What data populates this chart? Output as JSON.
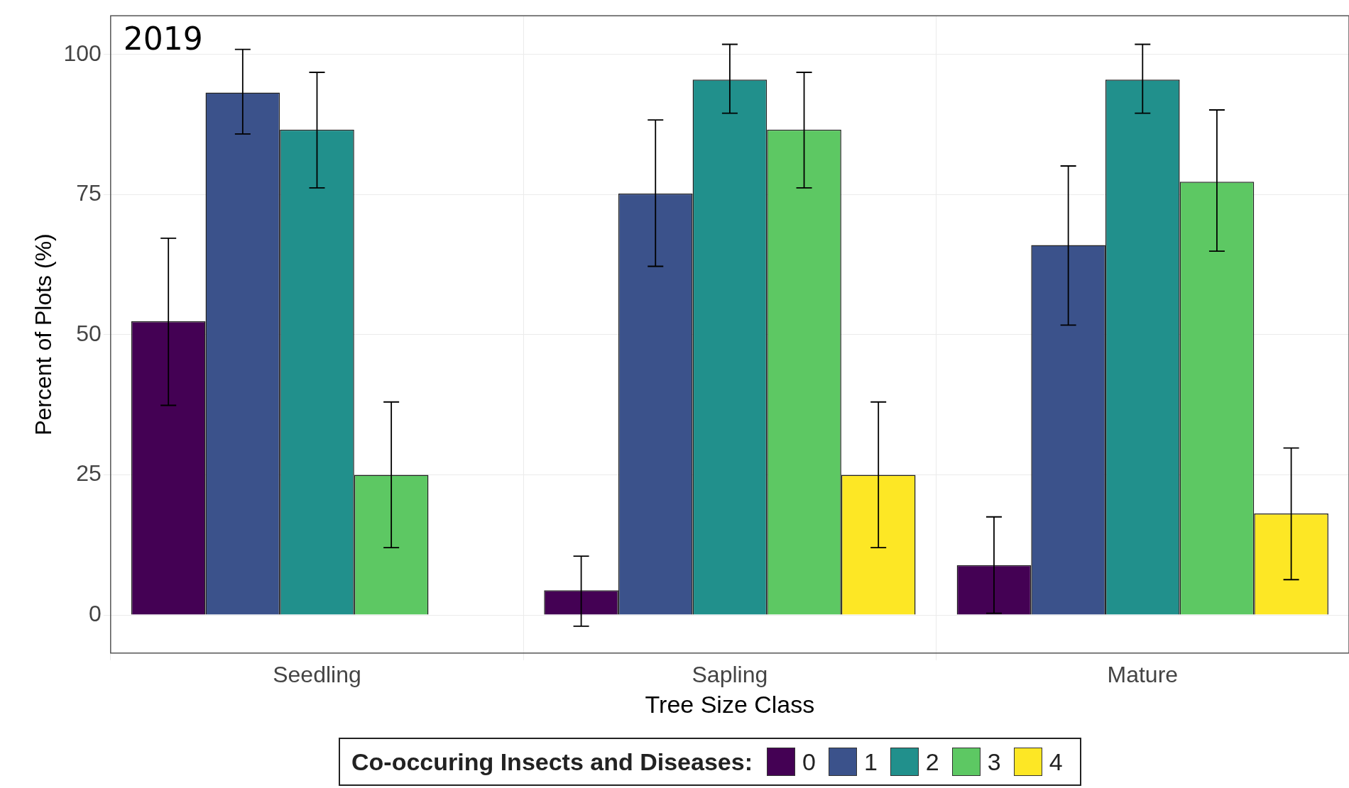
{
  "chart_data": {
    "type": "bar",
    "xlabel": "Tree Size Class",
    "ylabel": "Percent of Plots (%)",
    "legend_title": "Co-occuring Insects and Diseases:",
    "annotations": [
      "2019"
    ],
    "categories": [
      "Seedling",
      "Sapling",
      "Mature"
    ],
    "series": [
      {
        "name": "0",
        "color": "#440154",
        "values": [
          52.4,
          4.4,
          8.9
        ],
        "errors": [
          [
            37.4,
            67.2
          ],
          [
            -2.0,
            10.5
          ],
          [
            0.3,
            17.5
          ]
        ]
      },
      {
        "name": "1",
        "color": "#3b528b",
        "values": [
          93.2,
          75.2,
          66.0
        ],
        "errors": [
          [
            85.8,
            100.9
          ],
          [
            62.2,
            88.3
          ],
          [
            51.7,
            80.1
          ]
        ]
      },
      {
        "name": "2",
        "color": "#21908c",
        "values": [
          86.6,
          95.5,
          95.5
        ],
        "errors": [
          [
            76.2,
            96.8
          ],
          [
            89.5,
            101.8
          ],
          [
            89.5,
            101.8
          ]
        ]
      },
      {
        "name": "3",
        "color": "#5dc863",
        "values": [
          25,
          86.6,
          77.3
        ],
        "errors": [
          [
            12.0,
            38.0
          ],
          [
            76.2,
            96.8
          ],
          [
            64.9,
            90.1
          ]
        ]
      },
      {
        "name": "4",
        "color": "#fde725",
        "values": [
          0,
          25,
          18.1
        ],
        "errors": [
          null,
          [
            12.0,
            38.0
          ],
          [
            6.3,
            29.8
          ]
        ]
      }
    ],
    "ylim": [
      -6.8,
      106.9
    ],
    "yticks": [
      0,
      25,
      50,
      75,
      100
    ],
    "grid": true,
    "legend": "bottom"
  }
}
